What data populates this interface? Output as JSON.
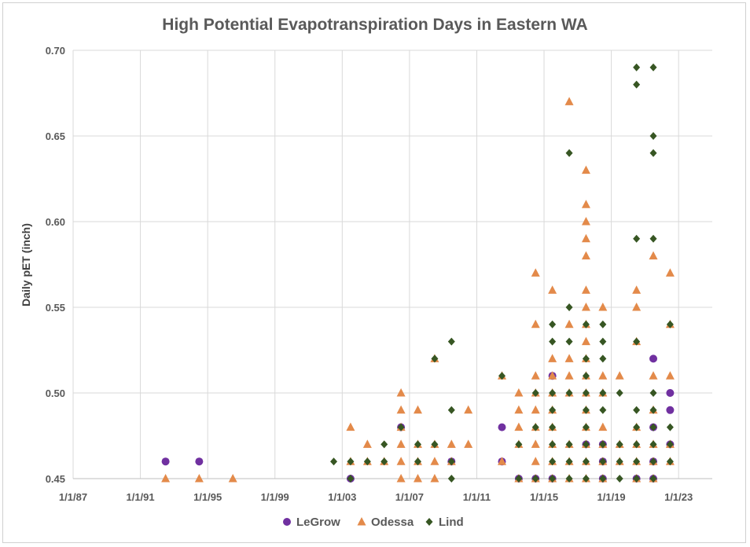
{
  "chart_data": {
    "type": "scatter",
    "title": "High Potential Evapotranspiration Days in Eastern WA",
    "ylabel": "Daily pET (inch)",
    "xlabel": "",
    "xlim": [
      "1987-01-01",
      "2025-01-01"
    ],
    "ylim": [
      0.45,
      0.7
    ],
    "x_ticks": [
      "1/1/87",
      "1/1/91",
      "1/1/95",
      "1/1/99",
      "1/1/03",
      "1/1/07",
      "1/1/11",
      "1/1/15",
      "1/1/19",
      "1/1/23"
    ],
    "y_ticks": [
      "0.45",
      "0.50",
      "0.55",
      "0.60",
      "0.65",
      "0.70"
    ],
    "grid": true,
    "legend_position": "bottom",
    "series": [
      {
        "name": "LeGrow",
        "marker": "circle",
        "color": "#7030A0",
        "points": [
          [
            "1992-07-01",
            0.46
          ],
          [
            "1994-07-01",
            0.46
          ],
          [
            "2003-07-01",
            0.45
          ],
          [
            "2006-07-01",
            0.48
          ],
          [
            "2009-07-01",
            0.46
          ],
          [
            "2012-07-01",
            0.48
          ],
          [
            "2012-07-01",
            0.46
          ],
          [
            "2013-07-01",
            0.45
          ],
          [
            "2014-07-01",
            0.45
          ],
          [
            "2015-07-01",
            0.51
          ],
          [
            "2015-07-01",
            0.45
          ],
          [
            "2017-07-01",
            0.47
          ],
          [
            "2018-07-01",
            0.47
          ],
          [
            "2018-07-01",
            0.46
          ],
          [
            "2018-07-01",
            0.45
          ],
          [
            "2020-07-01",
            0.45
          ],
          [
            "2021-07-01",
            0.52
          ],
          [
            "2021-07-01",
            0.48
          ],
          [
            "2021-07-01",
            0.46
          ],
          [
            "2021-07-01",
            0.45
          ],
          [
            "2022-07-01",
            0.5
          ],
          [
            "2022-07-01",
            0.49
          ],
          [
            "2022-07-01",
            0.47
          ]
        ]
      },
      {
        "name": "Odessa",
        "marker": "triangle",
        "color": "#E38A4A",
        "points": [
          [
            "1992-07-01",
            0.45
          ],
          [
            "1994-07-01",
            0.45
          ],
          [
            "1996-07-01",
            0.45
          ],
          [
            "2003-07-01",
            0.48
          ],
          [
            "2003-07-01",
            0.46
          ],
          [
            "2004-07-01",
            0.47
          ],
          [
            "2004-07-01",
            0.46
          ],
          [
            "2005-07-01",
            0.46
          ],
          [
            "2006-07-01",
            0.5
          ],
          [
            "2006-07-01",
            0.49
          ],
          [
            "2006-07-01",
            0.48
          ],
          [
            "2006-07-01",
            0.47
          ],
          [
            "2006-07-01",
            0.46
          ],
          [
            "2006-07-01",
            0.45
          ],
          [
            "2007-07-01",
            0.49
          ],
          [
            "2007-07-01",
            0.47
          ],
          [
            "2007-07-01",
            0.46
          ],
          [
            "2007-07-01",
            0.45
          ],
          [
            "2008-07-01",
            0.52
          ],
          [
            "2008-07-01",
            0.47
          ],
          [
            "2008-07-01",
            0.46
          ],
          [
            "2008-07-01",
            0.45
          ],
          [
            "2009-07-01",
            0.47
          ],
          [
            "2009-07-01",
            0.46
          ],
          [
            "2010-07-01",
            0.49
          ],
          [
            "2010-07-01",
            0.47
          ],
          [
            "2012-07-01",
            0.51
          ],
          [
            "2012-07-01",
            0.46
          ],
          [
            "2013-07-01",
            0.5
          ],
          [
            "2013-07-01",
            0.49
          ],
          [
            "2013-07-01",
            0.48
          ],
          [
            "2013-07-01",
            0.47
          ],
          [
            "2013-07-01",
            0.45
          ],
          [
            "2014-07-01",
            0.57
          ],
          [
            "2014-07-01",
            0.54
          ],
          [
            "2014-07-01",
            0.51
          ],
          [
            "2014-07-01",
            0.5
          ],
          [
            "2014-07-01",
            0.49
          ],
          [
            "2014-07-01",
            0.48
          ],
          [
            "2014-07-01",
            0.47
          ],
          [
            "2014-07-01",
            0.46
          ],
          [
            "2014-07-01",
            0.45
          ],
          [
            "2015-07-01",
            0.56
          ],
          [
            "2015-07-01",
            0.52
          ],
          [
            "2015-07-01",
            0.51
          ],
          [
            "2015-07-01",
            0.5
          ],
          [
            "2015-07-01",
            0.49
          ],
          [
            "2015-07-01",
            0.48
          ],
          [
            "2015-07-01",
            0.47
          ],
          [
            "2015-07-01",
            0.46
          ],
          [
            "2015-07-01",
            0.45
          ],
          [
            "2016-07-01",
            0.67
          ],
          [
            "2016-07-01",
            0.54
          ],
          [
            "2016-07-01",
            0.52
          ],
          [
            "2016-07-01",
            0.51
          ],
          [
            "2016-07-01",
            0.5
          ],
          [
            "2016-07-01",
            0.47
          ],
          [
            "2016-07-01",
            0.46
          ],
          [
            "2016-07-01",
            0.45
          ],
          [
            "2017-07-01",
            0.63
          ],
          [
            "2017-07-01",
            0.61
          ],
          [
            "2017-07-01",
            0.6
          ],
          [
            "2017-07-01",
            0.59
          ],
          [
            "2017-07-01",
            0.58
          ],
          [
            "2017-07-01",
            0.56
          ],
          [
            "2017-07-01",
            0.55
          ],
          [
            "2017-07-01",
            0.54
          ],
          [
            "2017-07-01",
            0.53
          ],
          [
            "2017-07-01",
            0.52
          ],
          [
            "2017-07-01",
            0.51
          ],
          [
            "2017-07-01",
            0.5
          ],
          [
            "2017-07-01",
            0.49
          ],
          [
            "2017-07-01",
            0.48
          ],
          [
            "2017-07-01",
            0.47
          ],
          [
            "2017-07-01",
            0.46
          ],
          [
            "2017-07-01",
            0.45
          ],
          [
            "2018-07-01",
            0.55
          ],
          [
            "2018-07-01",
            0.51
          ],
          [
            "2018-07-01",
            0.5
          ],
          [
            "2018-07-01",
            0.48
          ],
          [
            "2018-07-01",
            0.47
          ],
          [
            "2018-07-01",
            0.46
          ],
          [
            "2018-07-01",
            0.45
          ],
          [
            "2019-07-01",
            0.51
          ],
          [
            "2019-07-01",
            0.47
          ],
          [
            "2019-07-01",
            0.46
          ],
          [
            "2020-07-01",
            0.56
          ],
          [
            "2020-07-01",
            0.55
          ],
          [
            "2020-07-01",
            0.53
          ],
          [
            "2020-07-01",
            0.48
          ],
          [
            "2020-07-01",
            0.47
          ],
          [
            "2020-07-01",
            0.46
          ],
          [
            "2020-07-01",
            0.45
          ],
          [
            "2021-07-01",
            0.58
          ],
          [
            "2021-07-01",
            0.51
          ],
          [
            "2021-07-01",
            0.49
          ],
          [
            "2021-07-01",
            0.47
          ],
          [
            "2021-07-01",
            0.46
          ],
          [
            "2021-07-01",
            0.45
          ],
          [
            "2022-07-01",
            0.57
          ],
          [
            "2022-07-01",
            0.54
          ],
          [
            "2022-07-01",
            0.51
          ],
          [
            "2022-07-01",
            0.47
          ],
          [
            "2022-07-01",
            0.46
          ]
        ]
      },
      {
        "name": "Lind",
        "marker": "diamond",
        "color": "#375623",
        "points": [
          [
            "2002-07-01",
            0.46
          ],
          [
            "2003-07-01",
            0.46
          ],
          [
            "2003-07-01",
            0.45
          ],
          [
            "2004-07-01",
            0.46
          ],
          [
            "2005-07-01",
            0.47
          ],
          [
            "2005-07-01",
            0.46
          ],
          [
            "2006-07-01",
            0.48
          ],
          [
            "2007-07-01",
            0.47
          ],
          [
            "2007-07-01",
            0.46
          ],
          [
            "2008-07-01",
            0.52
          ],
          [
            "2008-07-01",
            0.47
          ],
          [
            "2009-07-01",
            0.53
          ],
          [
            "2009-07-01",
            0.49
          ],
          [
            "2009-07-01",
            0.46
          ],
          [
            "2009-07-01",
            0.45
          ],
          [
            "2012-07-01",
            0.51
          ],
          [
            "2013-07-01",
            0.47
          ],
          [
            "2013-07-01",
            0.45
          ],
          [
            "2014-07-01",
            0.5
          ],
          [
            "2014-07-01",
            0.48
          ],
          [
            "2014-07-01",
            0.45
          ],
          [
            "2015-07-01",
            0.54
          ],
          [
            "2015-07-01",
            0.53
          ],
          [
            "2015-07-01",
            0.5
          ],
          [
            "2015-07-01",
            0.49
          ],
          [
            "2015-07-01",
            0.48
          ],
          [
            "2015-07-01",
            0.47
          ],
          [
            "2015-07-01",
            0.46
          ],
          [
            "2015-07-01",
            0.45
          ],
          [
            "2016-07-01",
            0.64
          ],
          [
            "2016-07-01",
            0.55
          ],
          [
            "2016-07-01",
            0.53
          ],
          [
            "2016-07-01",
            0.5
          ],
          [
            "2016-07-01",
            0.47
          ],
          [
            "2016-07-01",
            0.46
          ],
          [
            "2016-07-01",
            0.45
          ],
          [
            "2017-07-01",
            0.54
          ],
          [
            "2017-07-01",
            0.52
          ],
          [
            "2017-07-01",
            0.51
          ],
          [
            "2017-07-01",
            0.5
          ],
          [
            "2017-07-01",
            0.49
          ],
          [
            "2017-07-01",
            0.48
          ],
          [
            "2017-07-01",
            0.47
          ],
          [
            "2017-07-01",
            0.46
          ],
          [
            "2017-07-01",
            0.45
          ],
          [
            "2018-07-01",
            0.54
          ],
          [
            "2018-07-01",
            0.53
          ],
          [
            "2018-07-01",
            0.52
          ],
          [
            "2018-07-01",
            0.5
          ],
          [
            "2018-07-01",
            0.49
          ],
          [
            "2018-07-01",
            0.47
          ],
          [
            "2018-07-01",
            0.46
          ],
          [
            "2018-07-01",
            0.45
          ],
          [
            "2019-07-01",
            0.5
          ],
          [
            "2019-07-01",
            0.47
          ],
          [
            "2019-07-01",
            0.46
          ],
          [
            "2019-07-01",
            0.45
          ],
          [
            "2020-07-01",
            0.69
          ],
          [
            "2020-07-01",
            0.68
          ],
          [
            "2020-07-01",
            0.59
          ],
          [
            "2020-07-01",
            0.53
          ],
          [
            "2020-07-01",
            0.49
          ],
          [
            "2020-07-01",
            0.48
          ],
          [
            "2020-07-01",
            0.47
          ],
          [
            "2020-07-01",
            0.46
          ],
          [
            "2020-07-01",
            0.45
          ],
          [
            "2021-07-01",
            0.69
          ],
          [
            "2021-07-01",
            0.65
          ],
          [
            "2021-07-01",
            0.64
          ],
          [
            "2021-07-01",
            0.59
          ],
          [
            "2021-07-01",
            0.5
          ],
          [
            "2021-07-01",
            0.49
          ],
          [
            "2021-07-01",
            0.48
          ],
          [
            "2021-07-01",
            0.47
          ],
          [
            "2021-07-01",
            0.46
          ],
          [
            "2021-07-01",
            0.45
          ],
          [
            "2022-07-01",
            0.54
          ],
          [
            "2022-07-01",
            0.48
          ],
          [
            "2022-07-01",
            0.47
          ],
          [
            "2022-07-01",
            0.46
          ]
        ]
      }
    ]
  }
}
